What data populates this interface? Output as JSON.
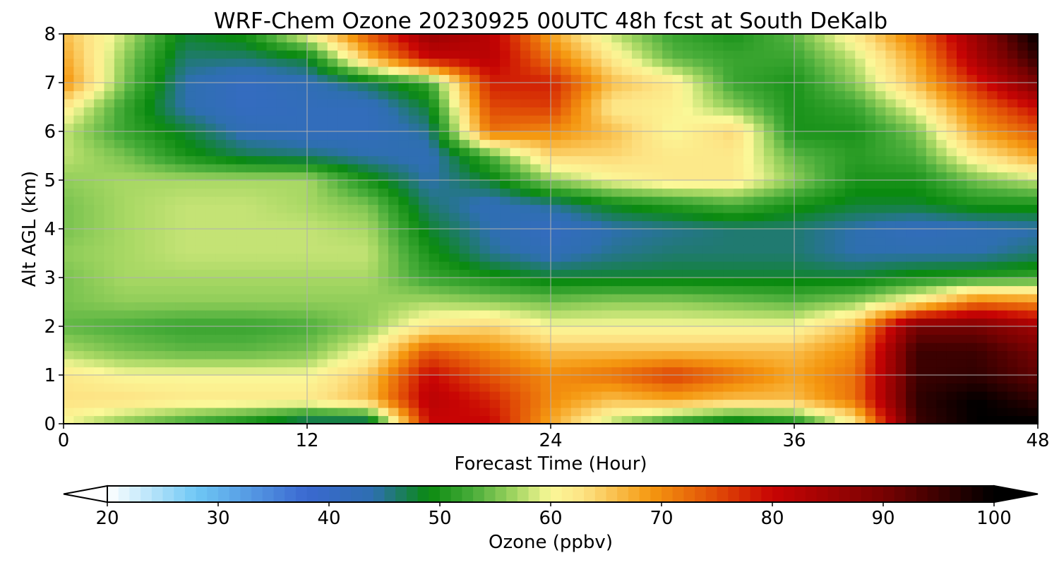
{
  "chart_data": {
    "type": "heatmap",
    "title": "WRF-Chem Ozone  20230925 00UTC 48h fcst at South DeKalb",
    "xlabel": "Forecast Time (Hour)",
    "ylabel": "Alt AGL (km)",
    "xlim": [
      0,
      48
    ],
    "ylim": [
      0,
      8
    ],
    "x_ticks": [
      0,
      12,
      24,
      36,
      48
    ],
    "y_ticks": [
      0,
      1,
      2,
      3,
      4,
      5,
      6,
      7,
      8
    ],
    "grid": true,
    "x": [
      0,
      3,
      6,
      9,
      12,
      15,
      18,
      21,
      24,
      27,
      30,
      33,
      36,
      39,
      42,
      45,
      48
    ],
    "y": [
      0.05,
      0.5,
      1,
      1.5,
      2,
      2.5,
      3,
      3.5,
      4,
      4.5,
      5,
      5.5,
      6,
      6.5,
      7,
      7.5,
      8
    ],
    "z": [
      [
        60,
        56,
        53,
        50,
        46,
        46,
        80,
        80,
        68,
        58,
        52,
        48,
        50,
        62,
        95,
        100,
        100
      ],
      [
        63,
        63,
        62,
        62,
        62,
        66,
        82,
        78,
        70,
        66,
        68,
        66,
        66,
        72,
        96,
        100,
        96
      ],
      [
        62,
        60,
        60,
        60,
        60,
        65,
        80,
        74,
        70,
        72,
        76,
        72,
        68,
        72,
        95,
        96,
        92
      ],
      [
        57,
        55,
        54,
        54,
        55,
        60,
        74,
        70,
        66,
        66,
        66,
        66,
        66,
        70,
        95,
        95,
        90
      ],
      [
        54,
        53,
        52,
        52,
        53,
        56,
        62,
        64,
        60,
        60,
        60,
        60,
        60,
        66,
        90,
        90,
        85
      ],
      [
        55,
        56,
        56,
        56,
        56,
        56,
        57,
        56,
        55,
        56,
        56,
        55,
        54,
        56,
        62,
        72,
        70
      ],
      [
        55,
        57,
        57,
        57,
        57,
        57,
        52,
        50,
        48,
        48,
        48,
        48,
        48,
        48,
        50,
        51,
        52
      ],
      [
        56,
        57,
        58,
        58,
        58,
        58,
        50,
        45,
        43,
        45,
        46,
        46,
        46,
        44,
        44,
        44,
        46
      ],
      [
        55,
        57,
        58,
        58,
        58,
        57,
        48,
        44,
        41,
        44,
        45,
        46,
        46,
        44,
        42,
        43,
        44
      ],
      [
        55,
        57,
        58,
        58,
        57,
        55,
        46,
        43,
        45,
        49,
        51,
        53,
        50,
        48,
        48,
        50,
        50
      ],
      [
        56,
        57,
        57,
        57,
        57,
        50,
        44,
        48,
        56,
        60,
        62,
        62,
        56,
        50,
        50,
        55,
        58
      ],
      [
        58,
        55,
        50,
        47,
        46,
        44,
        43,
        53,
        64,
        64,
        62,
        62,
        54,
        51,
        53,
        62,
        68
      ],
      [
        58,
        52,
        48,
        43,
        42,
        42,
        45,
        72,
        70,
        66,
        60,
        64,
        50,
        50,
        55,
        68,
        74
      ],
      [
        62,
        52,
        44,
        41,
        42,
        42,
        48,
        75,
        76,
        62,
        61,
        56,
        50,
        52,
        60,
        72,
        80
      ],
      [
        70,
        55,
        44,
        41,
        43,
        47,
        52,
        78,
        78,
        66,
        62,
        52,
        50,
        56,
        66,
        78,
        90
      ],
      [
        68,
        56,
        46,
        46,
        48,
        66,
        80,
        82,
        72,
        62,
        54,
        52,
        52,
        58,
        68,
        84,
        96
      ],
      [
        66,
        58,
        48,
        50,
        60,
        74,
        86,
        82,
        68,
        58,
        52,
        50,
        54,
        62,
        72,
        86,
        100
      ]
    ],
    "colorbar": {
      "label": "Ozone  (ppbv)",
      "ticks": [
        20,
        30,
        40,
        50,
        60,
        70,
        80,
        90,
        100
      ],
      "range": [
        20,
        100
      ],
      "extend": "both",
      "stops": [
        {
          "v": 20,
          "c": "#ffffff"
        },
        {
          "v": 28,
          "c": "#6fc8f5"
        },
        {
          "v": 38,
          "c": "#3a68d0"
        },
        {
          "v": 44,
          "c": "#2e6fb0"
        },
        {
          "v": 49,
          "c": "#0a8a10"
        },
        {
          "v": 53,
          "c": "#49ad3a"
        },
        {
          "v": 57,
          "c": "#a8d864"
        },
        {
          "v": 60,
          "c": "#fbf898"
        },
        {
          "v": 63,
          "c": "#fde283"
        },
        {
          "v": 69,
          "c": "#f59810"
        },
        {
          "v": 75,
          "c": "#e04a06"
        },
        {
          "v": 80,
          "c": "#c80404"
        },
        {
          "v": 90,
          "c": "#780202"
        },
        {
          "v": 100,
          "c": "#000000"
        }
      ]
    }
  }
}
